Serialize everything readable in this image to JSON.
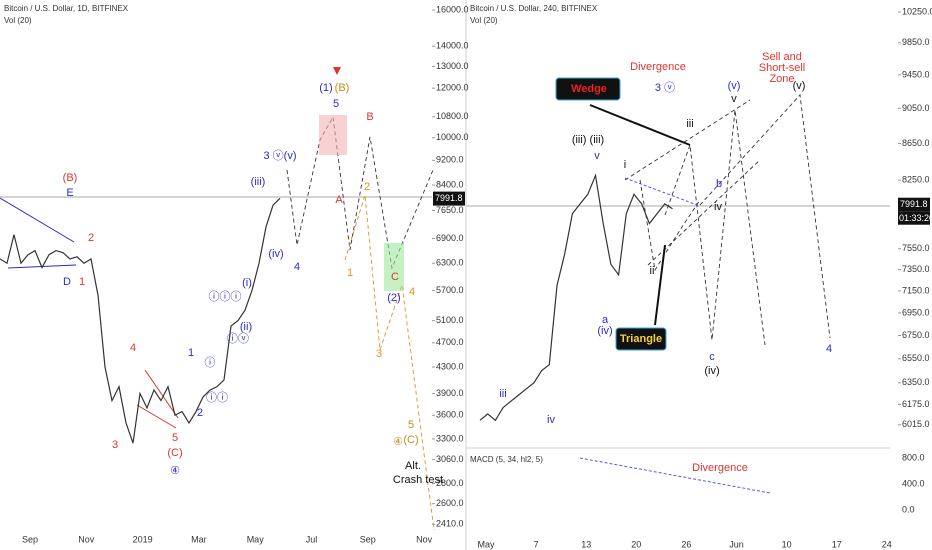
{
  "panels": [
    {
      "title": "Bitcoin / U.S. Dollar, 1D, BITFINEX",
      "volume_label": "Vol (20)",
      "log_scale": true,
      "color": "#333333",
      "ylim": [
        2360,
        16600
      ],
      "yticks": [
        {
          "value": 16000,
          "label": "16000.0"
        },
        {
          "value": 14000,
          "label": "14000.0"
        },
        {
          "value": 13000,
          "label": "13000.0"
        },
        {
          "value": 12000,
          "label": "12000.0"
        },
        {
          "value": 10800,
          "label": "10800.0"
        },
        {
          "value": 10000,
          "label": "10000.0"
        },
        {
          "value": 9200,
          "label": "9200.0"
        },
        {
          "value": 8400,
          "label": "8400.0"
        },
        {
          "value": 7650,
          "label": "7650.0"
        },
        {
          "value": 6900,
          "label": "6900.0"
        },
        {
          "value": 6300,
          "label": "6300.0"
        },
        {
          "value": 5700,
          "label": "5700.0"
        },
        {
          "value": 5100,
          "label": "5100.0"
        },
        {
          "value": 4700,
          "label": "4700.0"
        },
        {
          "value": 4300,
          "label": "4300.0"
        },
        {
          "value": 3900,
          "label": "3900.0"
        },
        {
          "value": 3600,
          "label": "3600.0"
        },
        {
          "value": 3300,
          "label": "3300.0"
        },
        {
          "value": 3060,
          "label": "3060.0"
        },
        {
          "value": 2800,
          "label": "2800.0"
        },
        {
          "value": 2600,
          "label": "2600.0"
        },
        {
          "value": 2410,
          "label": "2410.0"
        }
      ],
      "months": [
        "Sep",
        "Nov",
        "2019",
        "Mar",
        "May",
        "Jul",
        "Sep",
        "Nov"
      ],
      "close": [
        6400,
        6300,
        7000,
        6300,
        6500,
        6600,
        6200,
        6500,
        6600,
        6550,
        6400,
        6450,
        6300,
        6400,
        5600,
        4300,
        3800,
        4000,
        3500,
        3250,
        3900,
        3700,
        3950,
        3800,
        4000,
        3600,
        3650,
        3500,
        3650,
        3850,
        3950,
        4000,
        4100,
        5000,
        5100,
        5300,
        5700,
        6300,
        7200,
        7800,
        8000
      ],
      "last_price": {
        "value": 7991.8,
        "label": "7991.8"
      },
      "annotations": [
        "(B)",
        "E",
        "D",
        "1",
        "2",
        "4",
        "3",
        "5",
        "(C)",
        "④",
        "1",
        "ⓘ",
        "ⓘⓘ",
        "2",
        "ⓘⓘⓘ",
        "ⓘⓥ",
        "(i)",
        "(ii)",
        "(iii)",
        "(iv)",
        "3 ⓥ(v)",
        "4",
        "(1)",
        "5",
        "(B)",
        "A",
        "B",
        "2",
        "1",
        "C",
        "(2)",
        "3",
        "4",
        "5",
        "(C)",
        "④",
        "Alt.",
        "Crash test"
      ]
    },
    {
      "title": "Bitcoin / U.S. Dollar, 240, BITFINEX",
      "volume_label": "Vol (20)",
      "log_scale": true,
      "color": "#333333",
      "ylim": [
        5860,
        10410
      ],
      "yticks": [
        {
          "value": 10250,
          "label": "10250.0"
        },
        {
          "value": 9850,
          "label": "9850.0"
        },
        {
          "value": 9450,
          "label": "9450.0"
        },
        {
          "value": 9050,
          "label": "9050.0"
        },
        {
          "value": 8650,
          "label": "8650.0"
        },
        {
          "value": 8250,
          "label": "8250.0"
        },
        {
          "value": 7550,
          "label": "7550.0"
        },
        {
          "value": 7350,
          "label": "7350.0"
        },
        {
          "value": 7150,
          "label": "7150.0"
        },
        {
          "value": 6950,
          "label": "6950.0"
        },
        {
          "value": 6750,
          "label": "6750.0"
        },
        {
          "value": 6550,
          "label": "6550.0"
        },
        {
          "value": 6350,
          "label": "6350.0"
        },
        {
          "value": 6175,
          "label": "6175.0"
        },
        {
          "value": 6015,
          "label": "6015.0"
        }
      ],
      "months": [
        "May",
        "7",
        "13",
        "20",
        "26",
        "Jun",
        "10",
        "17",
        "24"
      ],
      "close": [
        6050,
        6100,
        6050,
        6150,
        6200,
        6250,
        6300,
        6350,
        6450,
        6500,
        7200,
        7500,
        7900,
        8000,
        8100,
        8300,
        7800,
        7400,
        7300,
        7900,
        8100,
        8000,
        7800,
        7900,
        8000,
        7950
      ],
      "last_price": {
        "value": 7991.8,
        "label": "7991.8"
      },
      "countdown": "01:33:20",
      "macd_label": "MACD (5, 34, hl2, 5)",
      "macd_ticks": [
        {
          "value": 800,
          "label": "800.0"
        },
        {
          "value": 400,
          "label": "400.0"
        },
        {
          "value": 0,
          "label": "0.0"
        }
      ],
      "annotations": [
        "Divergence",
        "Wedge",
        "3 ⓥ",
        "(v)",
        "v",
        "Sell and",
        "Short-sell",
        "Zone",
        "(v)",
        "iii",
        "(iii) (iii)",
        "v",
        "i",
        "b",
        "iv",
        "ii",
        "a",
        "(iv)",
        "Triangle",
        "c",
        "(iv)",
        "4",
        "iii",
        "iv",
        "Divergence"
      ]
    }
  ]
}
